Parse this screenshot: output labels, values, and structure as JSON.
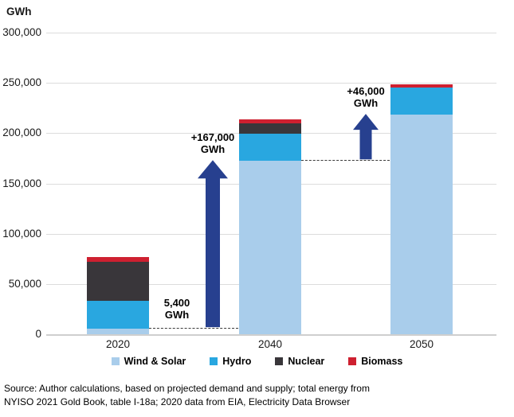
{
  "chart_data": {
    "type": "bar",
    "stacked": true,
    "ylabel": "GWh",
    "xlabel": "",
    "ylim": [
      0,
      300000
    ],
    "ytick_step": 50000,
    "ytick_labels": [
      "0",
      "50,000",
      "100,000",
      "150,000",
      "200,000",
      "250,000",
      "300,000"
    ],
    "grid": "horizontal",
    "legend_position": "bottom",
    "categories": [
      "2020",
      "2040",
      "2050"
    ],
    "series": [
      {
        "name": "Wind & Solar",
        "color": "#A9CDEB",
        "values": [
          5400,
          172400,
          218400
        ]
      },
      {
        "name": "Hydro",
        "color": "#29A7E0",
        "values": [
          28000,
          27000,
          27000
        ]
      },
      {
        "name": "Nuclear",
        "color": "#39363A",
        "values": [
          39000,
          10000,
          0
        ]
      },
      {
        "name": "Biomass",
        "color": "#CE2030",
        "values": [
          4000,
          4000,
          3000
        ]
      }
    ],
    "annotations": [
      {
        "line1": "5,400",
        "line2": "GWh"
      },
      {
        "line1": "+167,000",
        "line2": "GWh"
      },
      {
        "line1": "+46,000",
        "line2": "GWh"
      }
    ],
    "arrows": [
      {
        "from_value": 5400,
        "to_value": 172400
      },
      {
        "from_value": 172400,
        "to_value": 218400
      }
    ]
  },
  "colors": {
    "arrow": "#27408F",
    "gridline": "#DCDCDC",
    "axis_line": "#CFCFCF",
    "dashed_line": "#3A3A3A",
    "text": "#000000"
  },
  "source": {
    "line1": "Source: Author calculations, based on projected demand and supply; total energy from",
    "line2": "NYISO 2021 Gold Book, table I-18a; 2020 data from EIA, Electricity Data Browser"
  }
}
